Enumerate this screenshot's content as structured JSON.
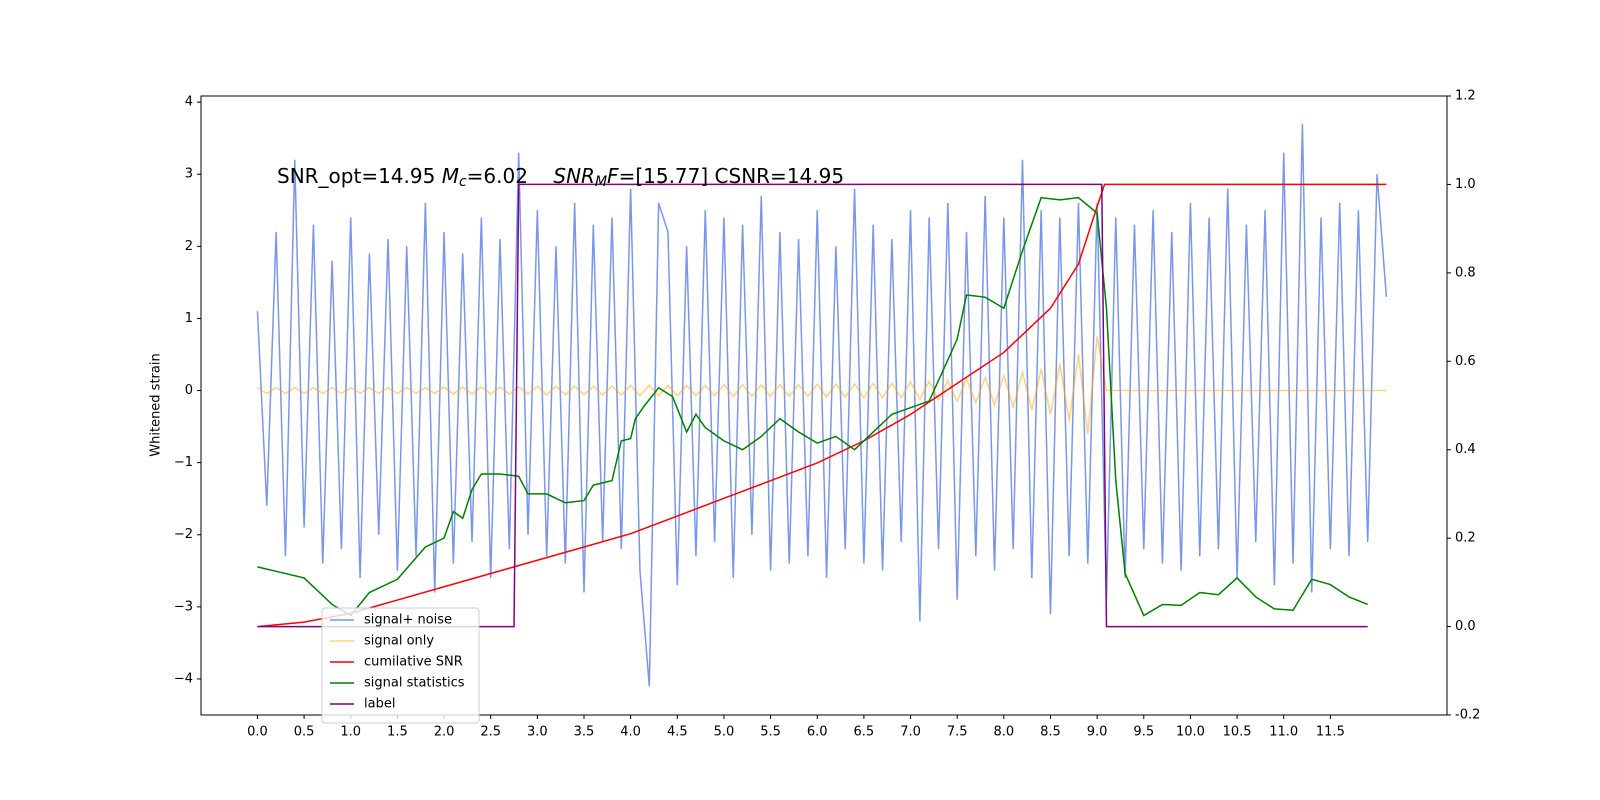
{
  "chart_data": {
    "type": "line",
    "annotation": [
      {
        "text": "SNR_opt=14.95 ",
        "style": "normal"
      },
      {
        "text": "M",
        "style": "italic"
      },
      {
        "text": "c",
        "style": "italic-sub"
      },
      {
        "text": "=6.02    ",
        "style": "normal"
      },
      {
        "text": "SNR",
        "style": "italic"
      },
      {
        "text": "M",
        "style": "italic-sub"
      },
      {
        "text": "F",
        "style": "italic"
      },
      {
        "text": "=[15.77] CSNR=14.95",
        "style": "normal"
      }
    ],
    "ylabel": "Whitened strain",
    "xlim": [
      -0.605,
      12.75
    ],
    "ylim": [
      -4.5,
      4.085
    ],
    "y2lim": [
      -0.2,
      1.2
    ],
    "xticks": [
      {
        "value": 0,
        "label": "0.0"
      },
      0.5,
      {
        "value": 1,
        "label": "1.0"
      },
      1.5,
      {
        "value": 2,
        "label": "2.0"
      },
      2.5,
      {
        "value": 3,
        "label": "3.0"
      },
      3.5,
      {
        "value": 4,
        "label": "4.0"
      },
      4.5,
      {
        "value": 5,
        "label": "5.0"
      },
      5.5,
      {
        "value": 6,
        "label": "6.0"
      },
      6.5,
      {
        "value": 7,
        "label": "7.0"
      },
      7.5,
      {
        "value": 8,
        "label": "8.0"
      },
      8.5,
      {
        "value": 9,
        "label": "9.0"
      },
      9.5,
      {
        "value": 10,
        "label": "10.0"
      },
      10.5,
      {
        "value": 11,
        "label": "11.0"
      },
      11.5
    ],
    "yticks": [
      {
        "value": -4,
        "label": "−4"
      },
      {
        "value": -3,
        "label": "−3"
      },
      {
        "value": -2,
        "label": "−2"
      },
      {
        "value": -1,
        "label": "−1"
      },
      0,
      1,
      2,
      3,
      4
    ],
    "y2ticks": [
      -0.2,
      {
        "value": 0,
        "label": "0.0"
      },
      0.2,
      0.4,
      0.6,
      0.8,
      {
        "value": 1,
        "label": "1.0"
      },
      1.2
    ],
    "legend": "lower left",
    "series": [
      {
        "name": "signal+ noise",
        "color": "#6b8be6",
        "alpha": 0.9,
        "axis": "y",
        "x": [
          0,
          0.1,
          0.2,
          0.3,
          0.4,
          0.5,
          0.6,
          0.7,
          0.8,
          0.9,
          1,
          1.1,
          1.2,
          1.3,
          1.4,
          1.5,
          1.6,
          1.7,
          1.8,
          1.9,
          2,
          2.1,
          2.2,
          2.3,
          2.4,
          2.5,
          2.6,
          2.7,
          2.8,
          2.9,
          3,
          3.1,
          3.2,
          3.3,
          3.4,
          3.5,
          3.6,
          3.7,
          3.8,
          3.9,
          4,
          4.1,
          4.2,
          4.3,
          4.4,
          4.5,
          4.6,
          4.7,
          4.8,
          4.9,
          5,
          5.1,
          5.2,
          5.3,
          5.4,
          5.5,
          5.6,
          5.7,
          5.8,
          5.9,
          6,
          6.1,
          6.2,
          6.3,
          6.4,
          6.5,
          6.6,
          6.7,
          6.8,
          6.9,
          7,
          7.1,
          7.2,
          7.3,
          7.4,
          7.5,
          7.6,
          7.7,
          7.8,
          7.9,
          8,
          8.1,
          8.2,
          8.3,
          8.4,
          8.5,
          8.6,
          8.7,
          8.8,
          8.9,
          9,
          9.1,
          9.2,
          9.3,
          9.4,
          9.5,
          9.6,
          9.7,
          9.8,
          9.9,
          10,
          10.1,
          10.2,
          10.3,
          10.4,
          10.5,
          10.6,
          10.7,
          10.8,
          10.9,
          11,
          11.1,
          11.2,
          11.3,
          11.4,
          11.5,
          11.6,
          11.7,
          11.8,
          11.9,
          12,
          12.1
        ],
        "values": [
          1.1,
          -1.6,
          2.2,
          -2.3,
          3.2,
          -1.9,
          2.3,
          -2.4,
          1.8,
          -2.2,
          2.4,
          -2.6,
          1.9,
          -2.0,
          2.1,
          -2.5,
          2.0,
          -2.3,
          2.6,
          -2.8,
          2.2,
          -2.4,
          1.9,
          -2.1,
          2.4,
          -2.6,
          2.1,
          -2.2,
          3.3,
          -2.0,
          2.5,
          -2.3,
          2.0,
          -2.4,
          2.6,
          -2.8,
          2.3,
          -2.1,
          2.4,
          -2.2,
          2.8,
          -2.5,
          -4.1,
          2.6,
          2.2,
          -2.7,
          2.0,
          -2.3,
          2.5,
          -2.1,
          2.4,
          -2.6,
          2.3,
          -2.0,
          2.7,
          -2.5,
          2.2,
          -2.4,
          2.1,
          -2.3,
          2.5,
          -2.6,
          2.0,
          -2.2,
          2.8,
          -2.4,
          2.3,
          -2.5,
          2.1,
          -2.1,
          2.5,
          -3.2,
          2.4,
          -2.2,
          2.6,
          -2.9,
          2.2,
          -2.3,
          2.7,
          -2.5,
          2.4,
          -2.2,
          3.2,
          -2.6,
          2.5,
          -3.1,
          2.4,
          -2.3,
          2.6,
          -2.4,
          2.6,
          -2.9,
          2.4,
          -2.6,
          2.3,
          -2.2,
          2.5,
          -2.4,
          2.2,
          -2.5,
          2.6,
          -2.3,
          2.4,
          -2.2,
          2.8,
          -2.6,
          2.3,
          -2.1,
          2.5,
          -2.7,
          3.3,
          -2.4,
          3.7,
          -2.8,
          2.4,
          -2.2,
          2.6,
          -2.3,
          2.5,
          -2.1,
          3.0,
          1.3
        ]
      },
      {
        "name": "signal only",
        "color": "#ffa500",
        "alpha": 0.5,
        "axis": "y",
        "x": [
          0,
          0.1,
          0.2,
          0.3,
          0.4,
          0.5,
          0.6,
          0.7,
          0.8,
          0.9,
          1,
          1.1,
          1.2,
          1.3,
          1.4,
          1.5,
          1.6,
          1.7,
          1.8,
          1.9,
          2,
          2.1,
          2.2,
          2.3,
          2.4,
          2.5,
          2.6,
          2.7,
          2.8,
          2.9,
          3,
          3.1,
          3.2,
          3.3,
          3.4,
          3.5,
          3.6,
          3.7,
          3.8,
          3.9,
          4,
          4.1,
          4.2,
          4.3,
          4.4,
          4.5,
          4.6,
          4.7,
          4.8,
          4.9,
          5,
          5.1,
          5.2,
          5.3,
          5.4,
          5.5,
          5.6,
          5.7,
          5.8,
          5.9,
          6,
          6.1,
          6.2,
          6.3,
          6.4,
          6.5,
          6.6,
          6.7,
          6.8,
          6.9,
          7,
          7.1,
          7.2,
          7.3,
          7.4,
          7.5,
          7.6,
          7.7,
          7.8,
          7.9,
          8,
          8.1,
          8.2,
          8.3,
          8.4,
          8.5,
          8.6,
          8.7,
          8.8,
          8.9,
          9,
          9.1,
          9.2,
          9.3,
          9.4,
          9.5,
          9.6,
          9.7,
          9.8,
          9.9,
          10,
          10.1,
          10.2,
          10.3,
          10.4,
          10.5,
          10.6,
          10.7,
          10.8,
          10.9,
          11,
          11.1,
          11.2,
          11.3,
          11.4,
          11.5,
          11.6,
          11.7,
          11.8,
          11.9,
          12,
          12.1
        ],
        "values": [
          0.04,
          -0.04,
          0.04,
          -0.04,
          0.04,
          -0.04,
          0.04,
          -0.04,
          0.04,
          -0.04,
          0.04,
          -0.04,
          0.04,
          -0.04,
          0.04,
          -0.04,
          0.04,
          -0.04,
          0.04,
          -0.04,
          0.05,
          -0.05,
          0.05,
          -0.05,
          0.05,
          -0.05,
          0.05,
          -0.05,
          0.05,
          -0.05,
          0.06,
          -0.06,
          0.06,
          -0.06,
          0.06,
          -0.06,
          0.06,
          -0.06,
          0.06,
          -0.06,
          0.07,
          -0.07,
          0.07,
          -0.07,
          0.07,
          -0.07,
          0.07,
          -0.07,
          0.07,
          -0.07,
          0.08,
          -0.08,
          0.08,
          -0.08,
          0.08,
          -0.08,
          0.08,
          -0.08,
          0.08,
          -0.08,
          0.09,
          -0.09,
          0.09,
          -0.09,
          0.09,
          -0.1,
          0.1,
          -0.1,
          0.1,
          -0.1,
          0.12,
          -0.12,
          0.13,
          -0.13,
          0.14,
          -0.15,
          0.16,
          -0.17,
          0.18,
          -0.2,
          0.21,
          -0.23,
          0.25,
          -0.27,
          0.3,
          -0.33,
          0.37,
          -0.42,
          0.5,
          -0.6,
          0.75,
          0,
          0,
          0,
          0,
          0,
          0,
          0,
          0,
          0,
          0,
          0,
          0,
          0,
          0,
          0,
          0,
          0,
          0,
          0,
          0,
          0,
          0,
          0,
          0,
          0,
          0,
          0,
          0,
          0,
          0,
          0
        ]
      },
      {
        "name": "cumilative SNR",
        "color": "#ff0000",
        "alpha": 1,
        "axis": "y2",
        "x": [
          0,
          0.5,
          1,
          1.5,
          2,
          2.5,
          3,
          3.5,
          4,
          4.5,
          5,
          5.5,
          6,
          6.5,
          7,
          7.5,
          8,
          8.5,
          8.8,
          9.0,
          9.08,
          12.1
        ],
        "values": [
          0,
          0.01,
          0.03,
          0.06,
          0.09,
          0.12,
          0.15,
          0.18,
          0.21,
          0.25,
          0.29,
          0.33,
          0.37,
          0.42,
          0.48,
          0.55,
          0.62,
          0.72,
          0.82,
          0.95,
          1.0,
          1.0
        ]
      },
      {
        "name": "signal statistics",
        "color": "#008000",
        "alpha": 1,
        "axis": "y2",
        "x": [
          0,
          0.1,
          0.2,
          0.5,
          0.8,
          1.0,
          1.2,
          1.5,
          1.8,
          2.0,
          2.1,
          2.2,
          2.3,
          2.4,
          2.6,
          2.8,
          2.9,
          3.1,
          3.3,
          3.5,
          3.6,
          3.8,
          3.9,
          4.0,
          4.05,
          4.15,
          4.3,
          4.45,
          4.6,
          4.7,
          4.8,
          5.0,
          5.2,
          5.4,
          5.6,
          5.8,
          6.0,
          6.2,
          6.4,
          6.6,
          6.8,
          7.0,
          7.2,
          7.35,
          7.5,
          7.6,
          7.8,
          8.0,
          8.2,
          8.4,
          8.6,
          8.8,
          9.0,
          9.1,
          9.2,
          9.3,
          9.5,
          9.7,
          9.9,
          10.1,
          10.3,
          10.5,
          10.7,
          10.9,
          11.1,
          11.3,
          11.5,
          11.7,
          11.9
        ],
        "values": [
          0.135,
          0.13,
          0.125,
          0.11,
          0.05,
          0.025,
          0.077,
          0.107,
          0.18,
          0.2,
          0.26,
          0.245,
          0.31,
          0.345,
          0.345,
          0.34,
          0.3,
          0.3,
          0.28,
          0.285,
          0.32,
          0.33,
          0.42,
          0.425,
          0.47,
          0.5,
          0.54,
          0.52,
          0.44,
          0.48,
          0.45,
          0.42,
          0.4,
          0.43,
          0.47,
          0.44,
          0.415,
          0.43,
          0.4,
          0.44,
          0.48,
          0.495,
          0.51,
          0.58,
          0.65,
          0.75,
          0.745,
          0.72,
          0.85,
          0.97,
          0.965,
          0.97,
          0.935,
          0.72,
          0.33,
          0.12,
          0.025,
          0.05,
          0.048,
          0.077,
          0.072,
          0.11,
          0.067,
          0.04,
          0.037,
          0.107,
          0.095,
          0.067,
          0.05
        ]
      },
      {
        "name": "label",
        "color": "#800080",
        "alpha": 1,
        "axis": "y2",
        "x": [
          0,
          2.75,
          2.8,
          9.05,
          9.1,
          11.9
        ],
        "values": [
          0,
          0,
          1,
          1,
          0,
          0
        ]
      }
    ]
  }
}
